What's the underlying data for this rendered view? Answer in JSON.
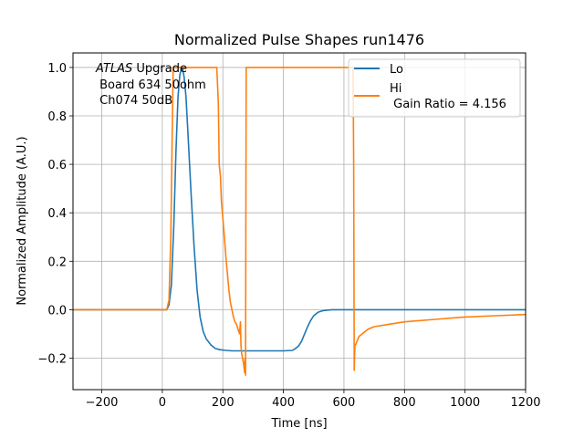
{
  "chart_data": {
    "type": "line",
    "title": "Normalized Pulse Shapes run1476",
    "xlabel": "Time [ns]",
    "ylabel": "Normalized Amplitude (A.U.)",
    "xlim": [
      -295,
      1200
    ],
    "ylim": [
      -0.33,
      1.06
    ],
    "xticks": [
      -200,
      0,
      200,
      400,
      600,
      800,
      1000,
      1200
    ],
    "xtick_labels": [
      "−200",
      "0",
      "200",
      "400",
      "600",
      "800",
      "1000",
      "1200"
    ],
    "yticks": [
      -0.2,
      0.0,
      0.2,
      0.4,
      0.6,
      0.8,
      1.0
    ],
    "ytick_labels": [
      "−0.2",
      "0.0",
      "0.2",
      "0.4",
      "0.6",
      "0.8",
      "1.0"
    ],
    "grid": true,
    "legend_position": "top-right",
    "annotation": {
      "line1_italic": "ATLAS",
      "line1_rest": " Upgrade",
      "line2": " Board 634 50ohm",
      "line3": " Ch074 50dB"
    },
    "series": [
      {
        "name": "Lo",
        "color": "#1f77b4",
        "x": [
          -295,
          0,
          15,
          22,
          30,
          38,
          45,
          52,
          58,
          64,
          68,
          72,
          78,
          85,
          95,
          105,
          115,
          125,
          135,
          145,
          160,
          175,
          190,
          210,
          230,
          260,
          300,
          350,
          400,
          430,
          440,
          450,
          460,
          470,
          480,
          490,
          500,
          515,
          530,
          560,
          600,
          700,
          800,
          1000,
          1200
        ],
        "y": [
          0.0,
          0.0,
          0.0,
          0.02,
          0.1,
          0.35,
          0.65,
          0.88,
          0.97,
          1.0,
          0.99,
          0.96,
          0.88,
          0.72,
          0.48,
          0.26,
          0.08,
          -0.03,
          -0.09,
          -0.12,
          -0.145,
          -0.16,
          -0.165,
          -0.168,
          -0.17,
          -0.17,
          -0.17,
          -0.17,
          -0.17,
          -0.168,
          -0.16,
          -0.15,
          -0.13,
          -0.1,
          -0.07,
          -0.045,
          -0.025,
          -0.01,
          -0.004,
          0.0,
          0.0,
          0.0,
          0.0,
          0.0,
          0.0
        ]
      },
      {
        "name": "Hi\n Gain Ratio = 4.156",
        "color": "#ff7f0e",
        "x": [
          -295,
          0,
          15,
          22,
          28,
          33,
          36,
          45,
          100,
          180,
          185,
          188,
          192,
          195,
          200,
          205,
          210,
          215,
          220,
          225,
          230,
          235,
          240,
          245,
          250,
          255,
          258,
          260,
          262,
          265,
          268,
          270,
          272,
          273,
          275,
          276,
          277,
          280,
          400,
          500,
          600,
          630,
          632,
          634,
          636,
          640,
          650,
          680,
          700,
          750,
          800,
          900,
          1000,
          1100,
          1200
        ],
        "y": [
          0.0,
          0.0,
          0.0,
          0.04,
          0.3,
          0.75,
          1.0,
          1.0,
          1.0,
          1.0,
          0.85,
          0.6,
          0.55,
          0.45,
          0.38,
          0.3,
          0.22,
          0.15,
          0.08,
          0.03,
          0.0,
          -0.03,
          -0.05,
          -0.06,
          -0.08,
          -0.1,
          -0.05,
          -0.15,
          -0.18,
          -0.2,
          -0.22,
          -0.24,
          -0.26,
          -0.2,
          -0.27,
          0.3,
          1.0,
          1.0,
          1.0,
          1.0,
          1.0,
          1.0,
          0.6,
          -0.25,
          -0.15,
          -0.14,
          -0.11,
          -0.08,
          -0.07,
          -0.06,
          -0.05,
          -0.04,
          -0.03,
          -0.025,
          -0.02
        ]
      }
    ]
  }
}
